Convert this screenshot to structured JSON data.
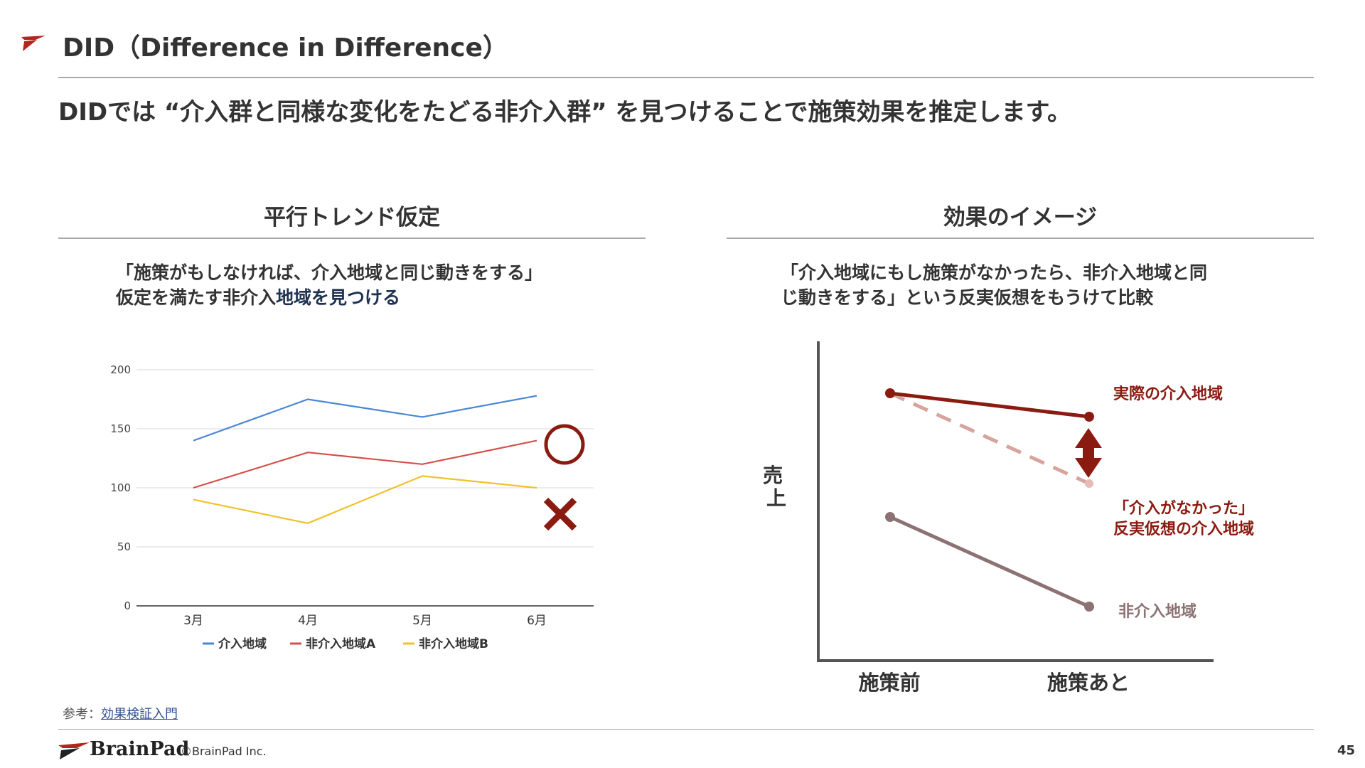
{
  "header": {
    "title": "DID（Difference in Difference）",
    "subtitle": "DIDでは “介入群と同様な変化をたどる非介入群” を見つけることで施策効果を推定します。"
  },
  "left": {
    "heading": "平行トレンド仮定",
    "desc_line1": "「施策がもしなければ、介入地域と同じ動きをする」",
    "desc_line2_a": "仮定を満たす非介入",
    "desc_line2_b": "地域を見つける",
    "circle_mark": "○",
    "cross_mark": "✕"
  },
  "right": {
    "heading": "効果のイメージ",
    "desc_line1": "「介入地域にもし施策がなかったら、非介入地域と同",
    "desc_line2": "じ動きをする」という反実仮想をもうけて比較",
    "y_axis_label": "売上",
    "x_before": "施策前",
    "x_after": "施策あと",
    "label_actual": "実際の介入地域",
    "label_counterfactual_1": "「介入がなかった」",
    "label_counterfactual_2": "反実仮想の介入地域",
    "label_control": "非介入地域"
  },
  "chart_data": {
    "type": "line",
    "categories": [
      "3月",
      "4月",
      "5月",
      "6月"
    ],
    "series": [
      {
        "name": "介入地域",
        "values": [
          140,
          175,
          160,
          178
        ],
        "color": "#4a86d4"
      },
      {
        "name": "非介入地域A",
        "values": [
          100,
          130,
          120,
          140
        ],
        "color": "#d4504a"
      },
      {
        "name": "非介入地域B",
        "values": [
          90,
          70,
          110,
          100
        ],
        "color": "#f2c12e"
      }
    ],
    "ylim": [
      0,
      200
    ],
    "yticks": [
      "0",
      "50",
      "100",
      "150",
      "200"
    ],
    "grid": true,
    "legend": "bottom"
  },
  "diagram_colors": {
    "actual": "#8b1a10",
    "counterfactual": "#d8a39d",
    "control": "#8c7273",
    "axis": "#555555",
    "marks": "#8b1a10"
  },
  "footer": {
    "ref_prefix": "参考：",
    "ref_link": "効果検証入門",
    "brand": "BrainPad",
    "copyright": "©BrainPad Inc.",
    "page": "45"
  }
}
